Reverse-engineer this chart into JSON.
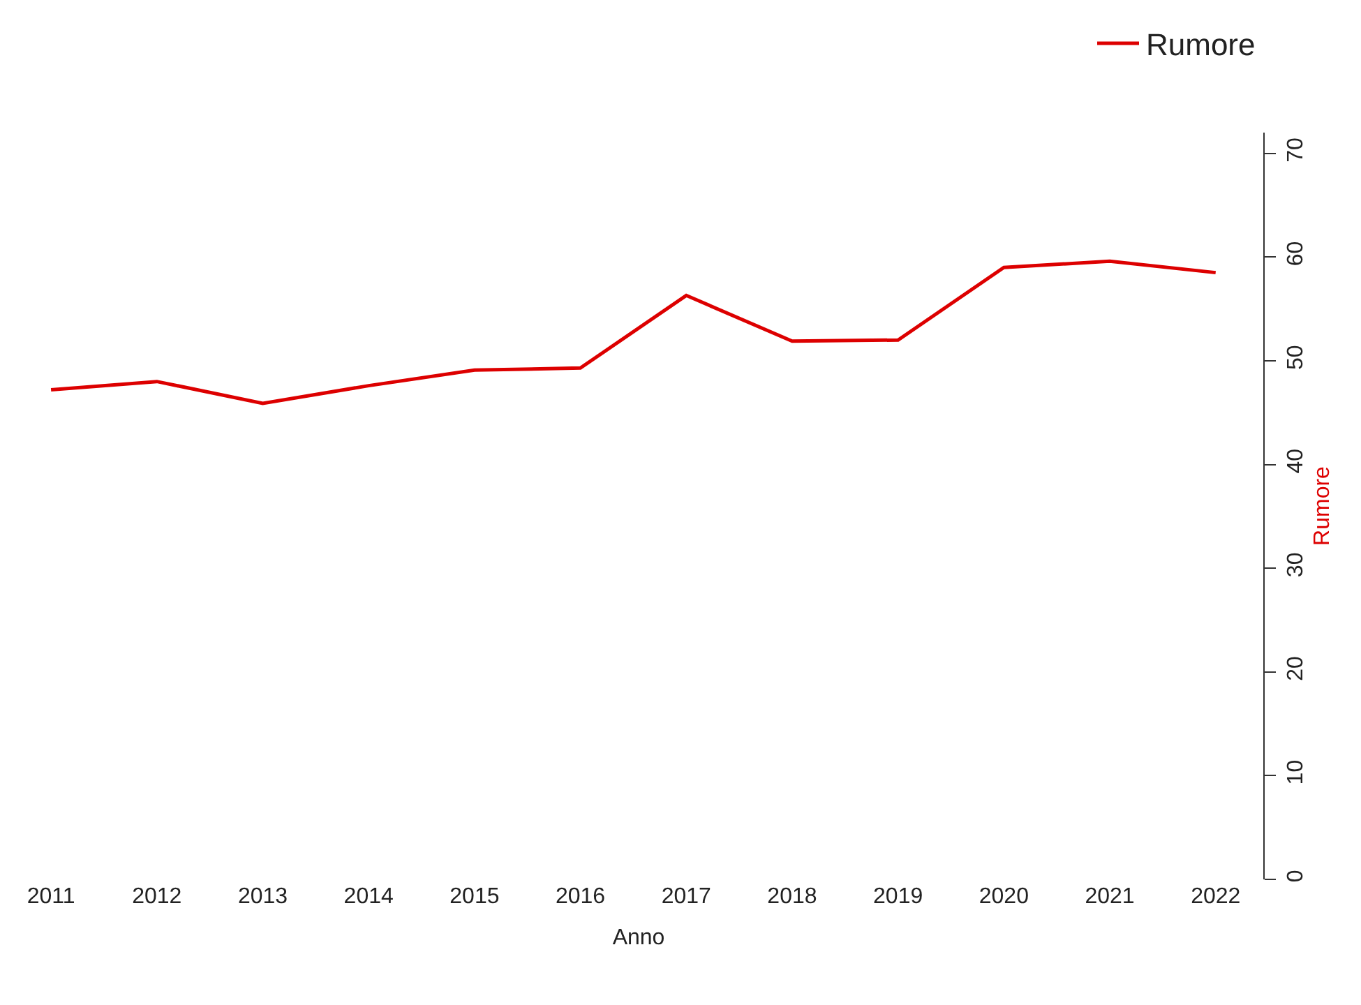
{
  "chart_data": {
    "type": "line",
    "xlabel": "Anno",
    "ylabel": "Rumore",
    "categories": [
      "2011",
      "2012",
      "2013",
      "2014",
      "2015",
      "2016",
      "2017",
      "2018",
      "2019",
      "2020",
      "2021",
      "2022"
    ],
    "series": [
      {
        "name": "Rumore",
        "color": "#dd0000",
        "values": [
          47.2,
          48.0,
          45.9,
          47.6,
          49.1,
          49.3,
          56.3,
          51.9,
          52.0,
          59.0,
          59.6,
          58.5
        ]
      }
    ],
    "ylim": [
      0,
      72
    ],
    "yticks": [
      0,
      10,
      20,
      30,
      40,
      50,
      60,
      70
    ],
    "legend": "top right",
    "marker": "none",
    "line_style": "solid"
  }
}
